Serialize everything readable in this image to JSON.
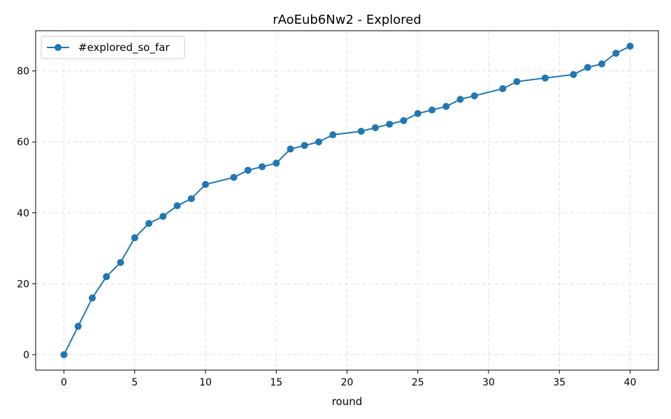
{
  "chart_data": {
    "type": "line",
    "title": "rAoEub6Nw2 - Explored",
    "xlabel": "round",
    "ylabel": "",
    "xlim": [
      -2,
      42
    ],
    "ylim": [
      -4.35,
      91.35
    ],
    "xticks": [
      0,
      5,
      10,
      15,
      20,
      25,
      30,
      35,
      40
    ],
    "yticks": [
      0,
      20,
      40,
      60,
      80
    ],
    "grid": true,
    "legend": "top-left",
    "series": [
      {
        "name": "#explored_so_far",
        "color": "#1f77b4",
        "marker": "circle",
        "x": [
          0,
          1,
          2,
          3,
          4,
          5,
          6,
          7,
          8,
          9,
          10,
          12,
          13,
          14,
          15,
          16,
          17,
          18,
          19,
          21,
          22,
          23,
          24,
          25,
          26,
          27,
          28,
          29,
          31,
          32,
          34,
          36,
          37,
          38,
          39,
          40
        ],
        "y": [
          0,
          8,
          16,
          22,
          26,
          33,
          37,
          39,
          42,
          44,
          48,
          50,
          52,
          53,
          54,
          58,
          59,
          60,
          62,
          63,
          64,
          65,
          66,
          68,
          69,
          70,
          72,
          73,
          75,
          77,
          78,
          79,
          81,
          82,
          85,
          87
        ]
      }
    ]
  }
}
